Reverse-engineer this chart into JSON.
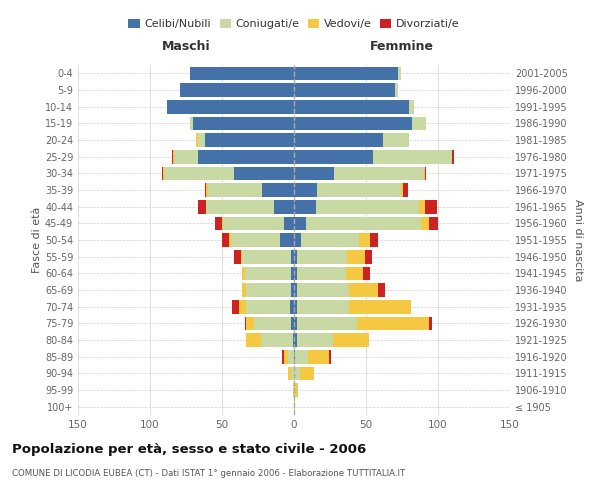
{
  "age_groups": [
    "100+",
    "95-99",
    "90-94",
    "85-89",
    "80-84",
    "75-79",
    "70-74",
    "65-69",
    "60-64",
    "55-59",
    "50-54",
    "45-49",
    "40-44",
    "35-39",
    "30-34",
    "25-29",
    "20-24",
    "15-19",
    "10-14",
    "5-9",
    "0-4"
  ],
  "birth_years": [
    "≤ 1905",
    "1906-1910",
    "1911-1915",
    "1916-1920",
    "1921-1925",
    "1926-1930",
    "1931-1935",
    "1936-1940",
    "1941-1945",
    "1946-1950",
    "1951-1955",
    "1956-1960",
    "1961-1965",
    "1966-1970",
    "1971-1975",
    "1976-1980",
    "1981-1985",
    "1986-1990",
    "1991-1995",
    "1996-2000",
    "2001-2005"
  ],
  "male_celibi": [
    0,
    0,
    0,
    0,
    1,
    2,
    3,
    2,
    2,
    2,
    10,
    7,
    14,
    22,
    42,
    67,
    62,
    70,
    88,
    79,
    72
  ],
  "male_coniugati": [
    0,
    1,
    2,
    4,
    22,
    26,
    30,
    31,
    32,
    34,
    34,
    42,
    47,
    38,
    48,
    16,
    5,
    2,
    0,
    0,
    0
  ],
  "male_vedovi": [
    0,
    0,
    2,
    3,
    10,
    5,
    5,
    3,
    2,
    1,
    1,
    1,
    0,
    1,
    1,
    1,
    1,
    0,
    0,
    0,
    0
  ],
  "male_divorziati": [
    0,
    0,
    0,
    1,
    0,
    1,
    5,
    0,
    0,
    5,
    5,
    5,
    6,
    1,
    1,
    1,
    0,
    0,
    0,
    0,
    0
  ],
  "female_celibi": [
    0,
    0,
    0,
    1,
    2,
    2,
    2,
    2,
    2,
    2,
    5,
    8,
    15,
    16,
    28,
    55,
    62,
    82,
    80,
    70,
    72
  ],
  "female_coniugati": [
    0,
    1,
    4,
    9,
    25,
    42,
    36,
    36,
    34,
    35,
    40,
    80,
    72,
    58,
    62,
    55,
    18,
    10,
    3,
    2,
    2
  ],
  "female_vedovi": [
    1,
    2,
    10,
    14,
    25,
    50,
    43,
    20,
    12,
    12,
    8,
    6,
    4,
    2,
    1,
    0,
    0,
    0,
    0,
    0,
    0
  ],
  "female_divorziati": [
    0,
    0,
    0,
    2,
    0,
    2,
    0,
    5,
    5,
    5,
    5,
    6,
    8,
    3,
    1,
    1,
    0,
    0,
    0,
    0,
    0
  ],
  "colors": {
    "celibi": "#4472a8",
    "coniugati": "#c8d9a4",
    "vedovi": "#f5c842",
    "divorziati": "#cc2222"
  },
  "title": "Popolazione per età, sesso e stato civile - 2006",
  "subtitle": "COMUNE DI LICODIA EUBEA (CT) - Dati ISTAT 1° gennaio 2006 - Elaborazione TUTTITALIA.IT",
  "xlabel_left": "Maschi",
  "xlabel_right": "Femmine",
  "ylabel_left": "Fasce di età",
  "ylabel_right": "Anni di nascita",
  "xlim": 150,
  "legend_labels": [
    "Celibi/Nubili",
    "Coniugati/e",
    "Vedovi/e",
    "Divorziati/e"
  ],
  "background_color": "#ffffff",
  "grid_color": "#d0d0d0"
}
